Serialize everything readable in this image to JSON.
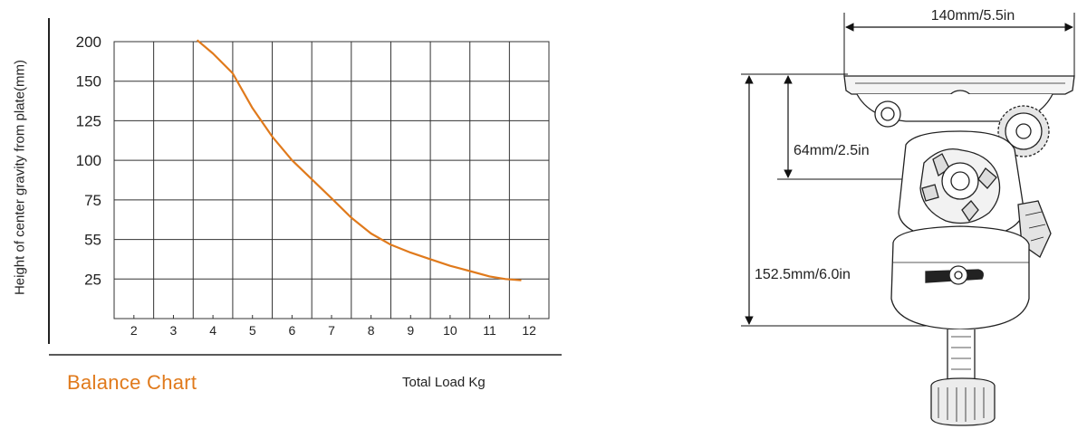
{
  "chart_data": {
    "type": "line",
    "title": "Balance Chart",
    "xlabel": "Total Load Kg",
    "ylabel": "Height of center gravity from plate(mm)",
    "x_ticks": [
      2,
      3,
      4,
      5,
      6,
      7,
      8,
      9,
      10,
      11,
      12
    ],
    "y_ticks": [
      "200",
      "150",
      "125",
      "100",
      "75",
      "55",
      "25"
    ],
    "y_tick_values": [
      200,
      150,
      125,
      100,
      75,
      55,
      25
    ],
    "xlim": [
      1,
      12
    ],
    "grid": true,
    "series": [
      {
        "color": "#e07a1c",
        "points": [
          [
            3.6,
            202
          ],
          [
            4.0,
            185
          ],
          [
            4.5,
            160
          ],
          [
            5.0,
            133
          ],
          [
            5.5,
            115
          ],
          [
            6.0,
            100
          ],
          [
            6.5,
            88
          ],
          [
            7.0,
            76
          ],
          [
            7.5,
            66
          ],
          [
            8.0,
            58
          ],
          [
            8.5,
            51
          ],
          [
            9.0,
            45
          ],
          [
            9.5,
            40
          ],
          [
            10.0,
            35
          ],
          [
            10.5,
            31
          ],
          [
            11.0,
            27
          ],
          [
            11.4,
            25
          ],
          [
            11.8,
            24
          ]
        ]
      }
    ]
  },
  "diagram": {
    "width_label": "140mm/5.5in",
    "upper_height_label": "64mm/2.5in",
    "total_height_label": "152.5mm/6.0in"
  }
}
